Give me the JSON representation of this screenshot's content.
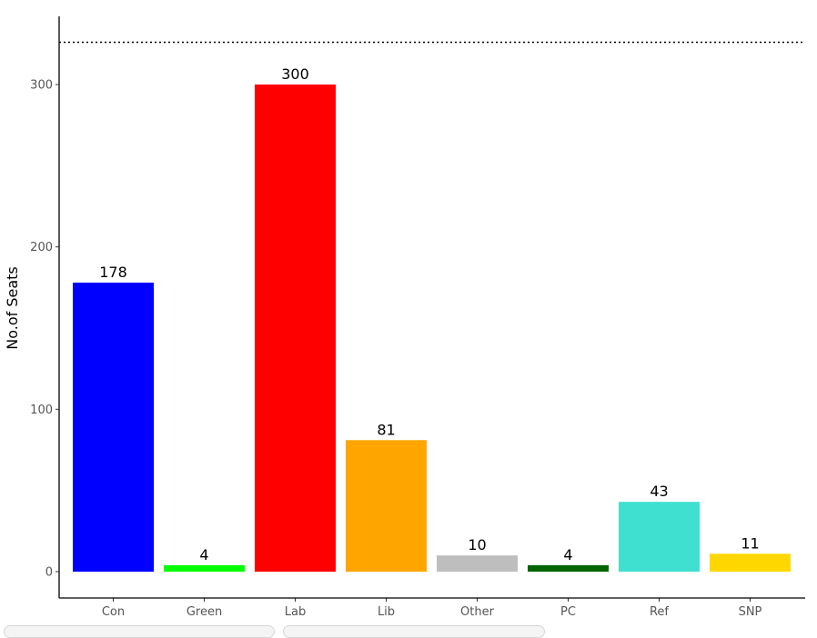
{
  "chart_data": {
    "type": "bar",
    "title": "",
    "xlabel": "",
    "ylabel": "No.of Seats",
    "categories": [
      "Con",
      "Green",
      "Lab",
      "Lib",
      "Other",
      "PC",
      "Ref",
      "SNP"
    ],
    "values": [
      178,
      4,
      300,
      81,
      10,
      4,
      43,
      11
    ],
    "colors": [
      "#0000ff",
      "#00ff00",
      "#ff0000",
      "#ffa500",
      "#bebebe",
      "#006400",
      "#40e0d0",
      "#ffd700"
    ],
    "ylim": [
      0,
      326
    ],
    "yticks": [
      0,
      100,
      200,
      300
    ],
    "reference_line": {
      "value": 326,
      "style": "dotted"
    },
    "grid": false,
    "legend": "none"
  }
}
